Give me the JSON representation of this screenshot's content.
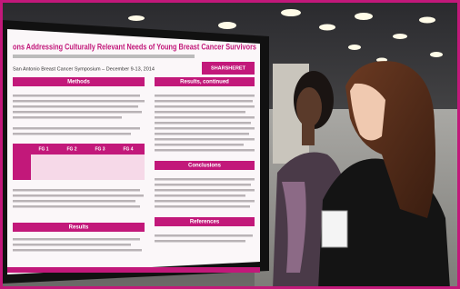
{
  "poster": {
    "title": "ons Addressing Culturally Relevant Needs of Young Breast Cancer Survivors",
    "subtitle": "San Antonio Breast Cancer Symposium – December 9-13, 2014",
    "logo": "SHARSHERET",
    "sections": [
      "Methods",
      "Results, continued",
      "Conclusions",
      "Results",
      "References"
    ],
    "table_header": [
      "FG 1",
      "FG 2",
      "FG 3",
      "FG 4"
    ]
  }
}
